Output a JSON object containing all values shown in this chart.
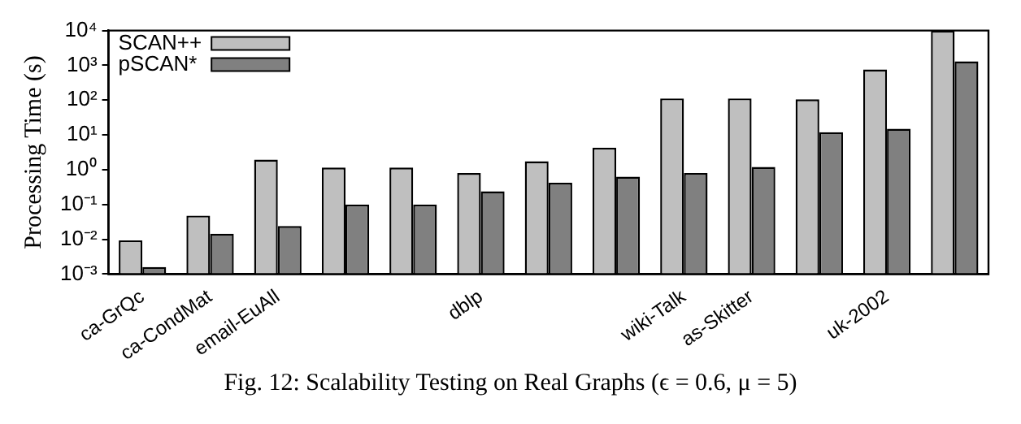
{
  "chart_data": {
    "type": "bar",
    "ylabel": "Processing Time (s)",
    "categories": [
      "ca-GrQc",
      "ca-CondMat",
      "email-EuAll",
      null,
      null,
      "dblp",
      null,
      null,
      "wiki-Talk",
      "as-Skitter",
      null,
      "uk-2002",
      null
    ],
    "series": [
      {
        "name": "SCAN++",
        "color": "#bfbfbf",
        "values": [
          0.0093,
          0.048,
          1.95,
          1.15,
          1.15,
          0.8,
          1.75,
          4.3,
          112,
          112,
          105,
          760,
          10000
        ]
      },
      {
        "name": "pSCAN*",
        "color": "#808080",
        "values": [
          0.0016,
          0.0145,
          0.024,
          0.1,
          0.1,
          0.24,
          0.42,
          0.63,
          0.8,
          1.2,
          12,
          15,
          1300
        ]
      }
    ],
    "log": "y",
    "ylim": [
      0.001,
      10000
    ],
    "yticks": [
      {
        "value": 0.001,
        "label": "10⁻³"
      },
      {
        "value": 0.01,
        "label": "10⁻²"
      },
      {
        "value": 0.1,
        "label": "10⁻¹"
      },
      {
        "value": 1,
        "label": "10⁰"
      },
      {
        "value": 10,
        "label": "10¹"
      },
      {
        "value": 100,
        "label": "10²"
      },
      {
        "value": 1000,
        "label": "10³"
      },
      {
        "value": 10000,
        "label": "10⁴"
      }
    ],
    "grid": false,
    "legend": "top left",
    "annotations": [
      "Fig. 12: Scalability Testing on Real Graphs (ϵ = 0.6, μ = 5)"
    ]
  }
}
